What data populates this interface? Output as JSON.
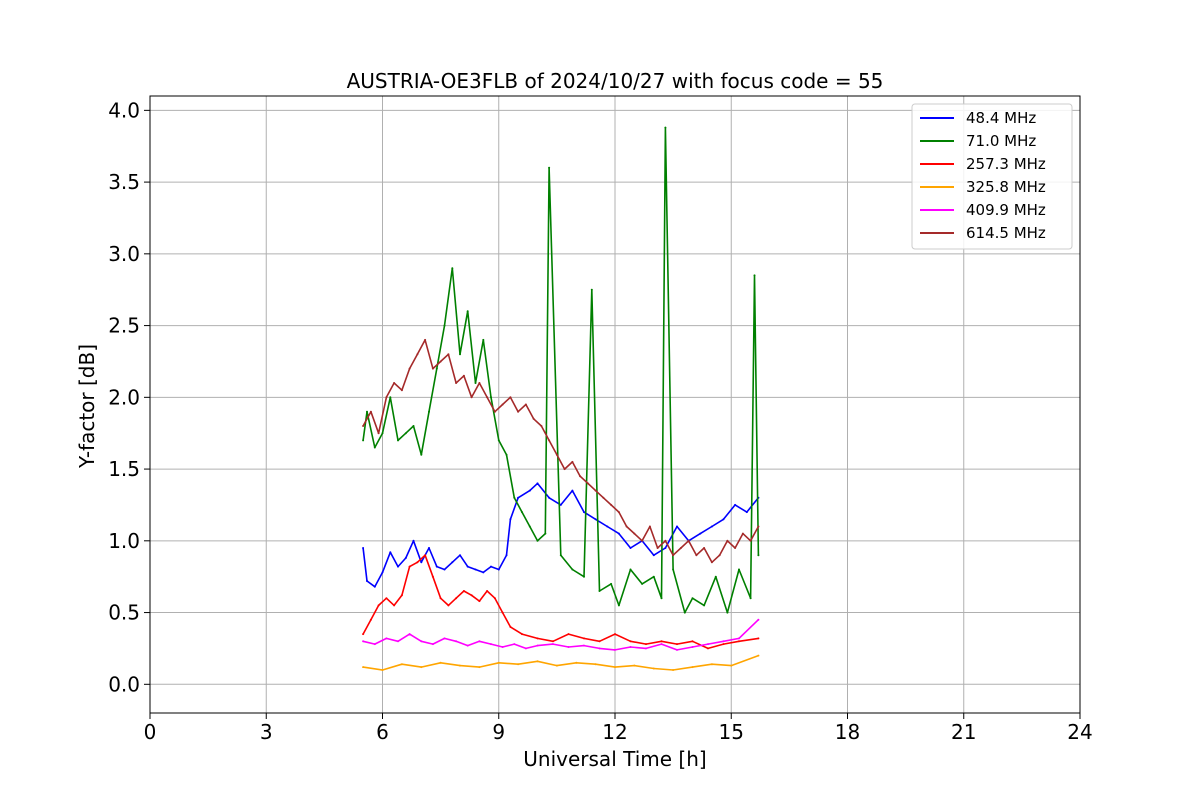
{
  "chart_data": {
    "type": "line",
    "title": "AUSTRIA-OE3FLB of 2024/10/27 with focus code = 55",
    "xlabel": "Universal Time [h]",
    "ylabel": "Y-factor [dB]",
    "xlim": [
      0,
      24
    ],
    "ylim": [
      -0.2,
      4.1
    ],
    "xticks": [
      0,
      3,
      6,
      9,
      12,
      15,
      18,
      21,
      24
    ],
    "yticks": [
      0.0,
      0.5,
      1.0,
      1.5,
      2.0,
      2.5,
      3.0,
      3.5,
      4.0
    ],
    "xtick_labels": [
      "0",
      "3",
      "6",
      "9",
      "12",
      "15",
      "18",
      "21",
      "24"
    ],
    "ytick_labels": [
      "0.0",
      "0.5",
      "1.0",
      "1.5",
      "2.0",
      "2.5",
      "3.0",
      "3.5",
      "4.0"
    ],
    "grid": true,
    "legend_position": "top-right",
    "series": [
      {
        "name": " 48.4 MHz",
        "color": "#0000ff",
        "x": [
          5.5,
          5.6,
          5.8,
          6.0,
          6.2,
          6.4,
          6.6,
          6.8,
          7.0,
          7.2,
          7.4,
          7.6,
          7.8,
          8.0,
          8.2,
          8.4,
          8.6,
          8.8,
          9.0,
          9.2,
          9.3,
          9.5,
          9.8,
          10.0,
          10.3,
          10.6,
          10.9,
          11.2,
          11.5,
          11.8,
          12.1,
          12.4,
          12.7,
          13.0,
          13.3,
          13.6,
          13.9,
          14.2,
          14.5,
          14.8,
          15.1,
          15.4,
          15.7
        ],
        "y": [
          0.95,
          0.72,
          0.68,
          0.78,
          0.92,
          0.82,
          0.88,
          1.0,
          0.85,
          0.95,
          0.82,
          0.8,
          0.85,
          0.9,
          0.82,
          0.8,
          0.78,
          0.82,
          0.8,
          0.9,
          1.15,
          1.3,
          1.35,
          1.4,
          1.3,
          1.25,
          1.35,
          1.2,
          1.15,
          1.1,
          1.05,
          0.95,
          1.0,
          0.9,
          0.95,
          1.1,
          1.0,
          1.05,
          1.1,
          1.15,
          1.25,
          1.2,
          1.3
        ]
      },
      {
        "name": " 71.0 MHz",
        "color": "#008000",
        "x": [
          5.5,
          5.6,
          5.8,
          6.0,
          6.2,
          6.4,
          6.6,
          6.8,
          7.0,
          7.2,
          7.4,
          7.6,
          7.8,
          8.0,
          8.2,
          8.4,
          8.6,
          8.8,
          9.0,
          9.2,
          9.4,
          9.6,
          9.8,
          10.0,
          10.2,
          10.3,
          10.6,
          10.9,
          11.2,
          11.4,
          11.6,
          11.9,
          12.1,
          12.4,
          12.7,
          13.0,
          13.2,
          13.3,
          13.5,
          13.8,
          14.0,
          14.3,
          14.6,
          14.9,
          15.2,
          15.5,
          15.6,
          15.7
        ],
        "y": [
          1.7,
          1.9,
          1.65,
          1.75,
          2.0,
          1.7,
          1.75,
          1.8,
          1.6,
          1.9,
          2.2,
          2.5,
          2.9,
          2.3,
          2.6,
          2.1,
          2.4,
          2.0,
          1.7,
          1.6,
          1.3,
          1.2,
          1.1,
          1.0,
          1.05,
          3.6,
          0.9,
          0.8,
          0.75,
          2.75,
          0.65,
          0.7,
          0.55,
          0.8,
          0.7,
          0.75,
          0.6,
          3.88,
          0.8,
          0.5,
          0.6,
          0.55,
          0.75,
          0.5,
          0.8,
          0.6,
          2.85,
          0.9
        ]
      },
      {
        "name": "257.3 MHz",
        "color": "#ff0000",
        "x": [
          5.5,
          5.7,
          5.9,
          6.1,
          6.3,
          6.5,
          6.7,
          6.9,
          7.1,
          7.3,
          7.5,
          7.7,
          7.9,
          8.1,
          8.3,
          8.5,
          8.7,
          8.9,
          9.1,
          9.3,
          9.6,
          10.0,
          10.4,
          10.8,
          11.2,
          11.6,
          12.0,
          12.4,
          12.8,
          13.2,
          13.6,
          14.0,
          14.4,
          14.8,
          15.2,
          15.7
        ],
        "y": [
          0.35,
          0.45,
          0.55,
          0.6,
          0.55,
          0.62,
          0.82,
          0.85,
          0.9,
          0.75,
          0.6,
          0.55,
          0.6,
          0.65,
          0.62,
          0.58,
          0.65,
          0.6,
          0.5,
          0.4,
          0.35,
          0.32,
          0.3,
          0.35,
          0.32,
          0.3,
          0.35,
          0.3,
          0.28,
          0.3,
          0.28,
          0.3,
          0.25,
          0.28,
          0.3,
          0.32
        ]
      },
      {
        "name": "325.8 MHz",
        "color": "#ffa500",
        "x": [
          5.5,
          6.0,
          6.5,
          7.0,
          7.5,
          8.0,
          8.5,
          9.0,
          9.5,
          10.0,
          10.5,
          11.0,
          11.5,
          12.0,
          12.5,
          13.0,
          13.5,
          14.0,
          14.5,
          15.0,
          15.7
        ],
        "y": [
          0.12,
          0.1,
          0.14,
          0.12,
          0.15,
          0.13,
          0.12,
          0.15,
          0.14,
          0.16,
          0.13,
          0.15,
          0.14,
          0.12,
          0.13,
          0.11,
          0.1,
          0.12,
          0.14,
          0.13,
          0.2
        ]
      },
      {
        "name": "409.9 MHz",
        "color": "#ff00ff",
        "x": [
          5.5,
          5.8,
          6.1,
          6.4,
          6.7,
          7.0,
          7.3,
          7.6,
          7.9,
          8.2,
          8.5,
          8.8,
          9.1,
          9.4,
          9.7,
          10.0,
          10.4,
          10.8,
          11.2,
          11.6,
          12.0,
          12.4,
          12.8,
          13.2,
          13.6,
          14.0,
          14.4,
          14.8,
          15.2,
          15.7
        ],
        "y": [
          0.3,
          0.28,
          0.32,
          0.3,
          0.35,
          0.3,
          0.28,
          0.32,
          0.3,
          0.27,
          0.3,
          0.28,
          0.26,
          0.28,
          0.25,
          0.27,
          0.28,
          0.26,
          0.27,
          0.25,
          0.24,
          0.26,
          0.25,
          0.28,
          0.24,
          0.26,
          0.28,
          0.3,
          0.32,
          0.45
        ]
      },
      {
        "name": "614.5 MHz",
        "color": "#a52a2a",
        "x": [
          5.5,
          5.7,
          5.9,
          6.1,
          6.3,
          6.5,
          6.7,
          6.9,
          7.1,
          7.3,
          7.5,
          7.7,
          7.9,
          8.1,
          8.3,
          8.5,
          8.7,
          8.9,
          9.1,
          9.3,
          9.5,
          9.7,
          9.9,
          10.1,
          10.3,
          10.5,
          10.7,
          10.9,
          11.1,
          11.3,
          11.5,
          11.7,
          11.9,
          12.1,
          12.3,
          12.5,
          12.7,
          12.9,
          13.1,
          13.3,
          13.5,
          13.7,
          13.9,
          14.1,
          14.3,
          14.5,
          14.7,
          14.9,
          15.1,
          15.3,
          15.5,
          15.7
        ],
        "y": [
          1.8,
          1.9,
          1.75,
          2.0,
          2.1,
          2.05,
          2.2,
          2.3,
          2.4,
          2.2,
          2.25,
          2.3,
          2.1,
          2.15,
          2.0,
          2.1,
          2.0,
          1.9,
          1.95,
          2.0,
          1.9,
          1.95,
          1.85,
          1.8,
          1.7,
          1.6,
          1.5,
          1.55,
          1.45,
          1.4,
          1.35,
          1.3,
          1.25,
          1.2,
          1.1,
          1.05,
          1.0,
          1.1,
          0.95,
          1.0,
          0.9,
          0.95,
          1.0,
          0.9,
          0.95,
          0.85,
          0.9,
          1.0,
          0.95,
          1.05,
          1.0,
          1.1
        ]
      }
    ]
  }
}
